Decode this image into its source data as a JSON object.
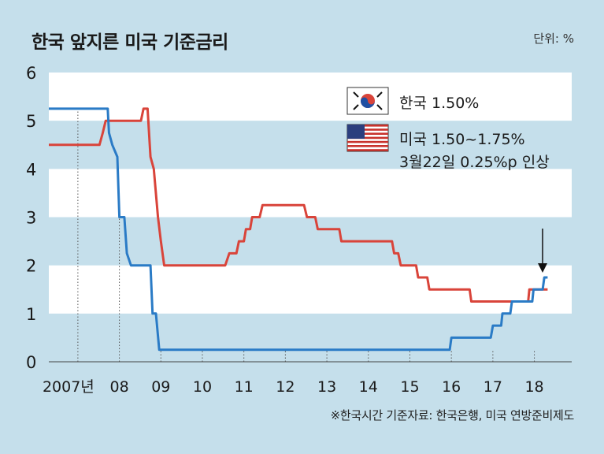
{
  "title": "한국 앞지른 미국 기준금리",
  "unit": "단위: %",
  "source": "※한국시간 기준자료: 한국은행, 미국 연방준비제도",
  "colors": {
    "korea": "#d9443a",
    "usa": "#2a7bc6",
    "band": "#ffffff",
    "background": "#c5dfeb"
  },
  "chart_data": {
    "type": "line",
    "title": "한국 앞지른 미국 기준금리",
    "xlabel": "",
    "ylabel": "",
    "ylim": [
      0,
      6
    ],
    "xlim": [
      2006.3,
      2018.9
    ],
    "y_ticks": [
      "0",
      "1",
      "2",
      "3",
      "4",
      "5",
      "6"
    ],
    "x_ticks": [
      {
        "value": 2007,
        "label": "2007년"
      },
      {
        "value": 2008,
        "label": "08"
      },
      {
        "value": 2009,
        "label": "09"
      },
      {
        "value": 2010,
        "label": "10"
      },
      {
        "value": 2011,
        "label": "11"
      },
      {
        "value": 2012,
        "label": "12"
      },
      {
        "value": 2013,
        "label": "13"
      },
      {
        "value": 2014,
        "label": "14"
      },
      {
        "value": 2015,
        "label": "15"
      },
      {
        "value": 2016,
        "label": "16"
      },
      {
        "value": 2017,
        "label": "17"
      },
      {
        "value": 2018,
        "label": "18"
      }
    ],
    "series": [
      {
        "name": "미국",
        "legend_label": "미국 1.50~1.75%",
        "legend_note": "3월22일 0.25%p 인상",
        "color_key": "usa",
        "points": [
          [
            2006.3,
            5.25
          ],
          [
            2007.72,
            5.25
          ],
          [
            2007.75,
            4.75
          ],
          [
            2007.83,
            4.5
          ],
          [
            2007.95,
            4.25
          ],
          [
            2008.0,
            3.0
          ],
          [
            2008.12,
            3.0
          ],
          [
            2008.18,
            2.25
          ],
          [
            2008.28,
            2.0
          ],
          [
            2008.75,
            2.0
          ],
          [
            2008.8,
            1.0
          ],
          [
            2008.88,
            1.0
          ],
          [
            2008.96,
            0.25
          ],
          [
            2015.96,
            0.25
          ],
          [
            2016.0,
            0.5
          ],
          [
            2016.95,
            0.5
          ],
          [
            2017.0,
            0.75
          ],
          [
            2017.2,
            0.75
          ],
          [
            2017.23,
            1.0
          ],
          [
            2017.42,
            1.0
          ],
          [
            2017.46,
            1.25
          ],
          [
            2017.95,
            1.25
          ],
          [
            2017.98,
            1.5
          ],
          [
            2018.2,
            1.5
          ],
          [
            2018.24,
            1.75
          ],
          [
            2018.32,
            1.75
          ]
        ]
      },
      {
        "name": "한국",
        "legend_label": "한국 1.50%",
        "color_key": "korea",
        "points": [
          [
            2006.3,
            4.5
          ],
          [
            2007.52,
            4.5
          ],
          [
            2007.6,
            4.75
          ],
          [
            2007.67,
            5.0
          ],
          [
            2008.52,
            5.0
          ],
          [
            2008.58,
            5.25
          ],
          [
            2008.68,
            5.25
          ],
          [
            2008.75,
            4.25
          ],
          [
            2008.83,
            4.0
          ],
          [
            2008.93,
            3.0
          ],
          [
            2009.0,
            2.5
          ],
          [
            2009.08,
            2.0
          ],
          [
            2010.55,
            2.0
          ],
          [
            2010.65,
            2.25
          ],
          [
            2010.82,
            2.25
          ],
          [
            2010.88,
            2.5
          ],
          [
            2011.0,
            2.5
          ],
          [
            2011.05,
            2.75
          ],
          [
            2011.15,
            2.75
          ],
          [
            2011.2,
            3.0
          ],
          [
            2011.38,
            3.0
          ],
          [
            2011.45,
            3.25
          ],
          [
            2012.45,
            3.25
          ],
          [
            2012.52,
            3.0
          ],
          [
            2012.72,
            3.0
          ],
          [
            2012.78,
            2.75
          ],
          [
            2013.3,
            2.75
          ],
          [
            2013.35,
            2.5
          ],
          [
            2014.57,
            2.5
          ],
          [
            2014.62,
            2.25
          ],
          [
            2014.72,
            2.25
          ],
          [
            2014.78,
            2.0
          ],
          [
            2015.15,
            2.0
          ],
          [
            2015.2,
            1.75
          ],
          [
            2015.42,
            1.75
          ],
          [
            2015.47,
            1.5
          ],
          [
            2016.44,
            1.5
          ],
          [
            2016.48,
            1.25
          ],
          [
            2017.85,
            1.25
          ],
          [
            2017.88,
            1.5
          ],
          [
            2018.32,
            1.5
          ]
        ]
      }
    ],
    "annotation": "arrow marking March 2018 U.S. rate hike"
  }
}
